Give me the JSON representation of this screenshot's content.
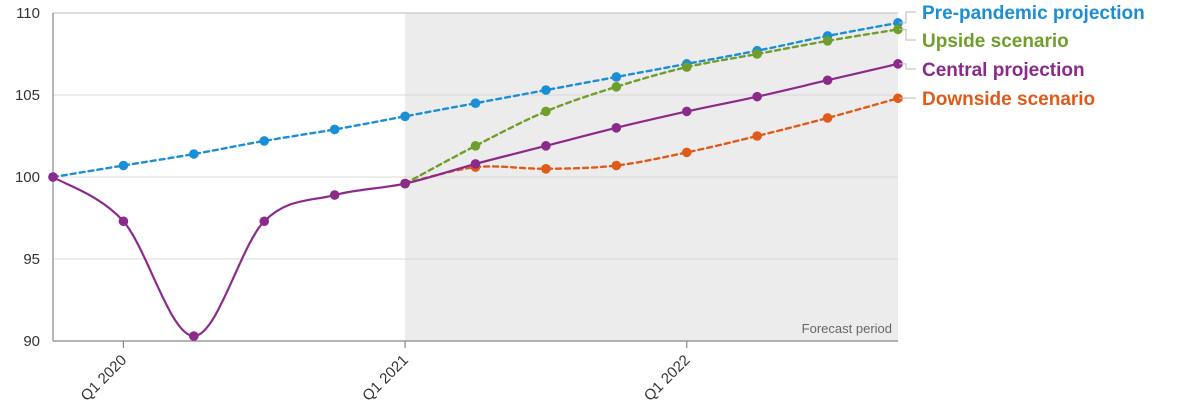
{
  "chart_data": {
    "type": "line",
    "title": "",
    "xlabel": "",
    "ylabel": "",
    "ylim": [
      90,
      110
    ],
    "yticks": [
      90,
      95,
      100,
      105,
      110
    ],
    "x": [
      "Q4 2019",
      "Q1 2020",
      "Q2 2020",
      "Q3 2020",
      "Q4 2020",
      "Q1 2021",
      "Q2 2021",
      "Q3 2021",
      "Q4 2021",
      "Q1 2022",
      "Q2 2022",
      "Q3 2022",
      "Q4 2022"
    ],
    "xticks": [
      "Q1 2020",
      "Q1 2021",
      "Q1 2022"
    ],
    "grid": "horizontal",
    "forecast": {
      "label": "Forecast period",
      "start": "Q1 2021",
      "end": "Q4 2022"
    },
    "legend_placement": "right",
    "series": [
      {
        "name": "Pre-pandemic projection",
        "color": "#1b8fd6",
        "style": "dashed",
        "x": [
          "Q4 2019",
          "Q1 2020",
          "Q2 2020",
          "Q3 2020",
          "Q4 2020",
          "Q1 2021",
          "Q2 2021",
          "Q3 2021",
          "Q4 2021",
          "Q1 2022",
          "Q2 2022",
          "Q3 2022",
          "Q4 2022"
        ],
        "values": [
          100.0,
          100.7,
          101.4,
          102.2,
          102.9,
          103.7,
          104.5,
          105.3,
          106.1,
          106.9,
          107.7,
          108.6,
          109.4
        ]
      },
      {
        "name": "Upside scenario",
        "color": "#6f9e2b",
        "style": "dashed",
        "x": [
          "Q1 2021",
          "Q2 2021",
          "Q3 2021",
          "Q4 2021",
          "Q1 2022",
          "Q2 2022",
          "Q3 2022",
          "Q4 2022"
        ],
        "values": [
          99.6,
          101.9,
          104.0,
          105.5,
          106.7,
          107.5,
          108.3,
          109.0
        ]
      },
      {
        "name": "Central projection",
        "color": "#8c2a8c",
        "style": "solid",
        "x": [
          "Q4 2019",
          "Q1 2020",
          "Q2 2020",
          "Q3 2020",
          "Q4 2020",
          "Q1 2021",
          "Q2 2021",
          "Q3 2021",
          "Q4 2021",
          "Q1 2022",
          "Q2 2022",
          "Q3 2022",
          "Q4 2022"
        ],
        "values": [
          100.0,
          97.3,
          90.3,
          97.3,
          98.9,
          99.6,
          100.8,
          101.9,
          103.0,
          104.0,
          104.9,
          105.9,
          106.9
        ]
      },
      {
        "name": "Downside scenario",
        "color": "#e05a1a",
        "style": "dashed",
        "x": [
          "Q1 2021",
          "Q2 2021",
          "Q3 2021",
          "Q4 2021",
          "Q1 2022",
          "Q2 2022",
          "Q3 2022",
          "Q4 2022"
        ],
        "values": [
          99.6,
          100.6,
          100.5,
          100.7,
          101.5,
          102.5,
          103.6,
          104.8
        ]
      }
    ]
  }
}
